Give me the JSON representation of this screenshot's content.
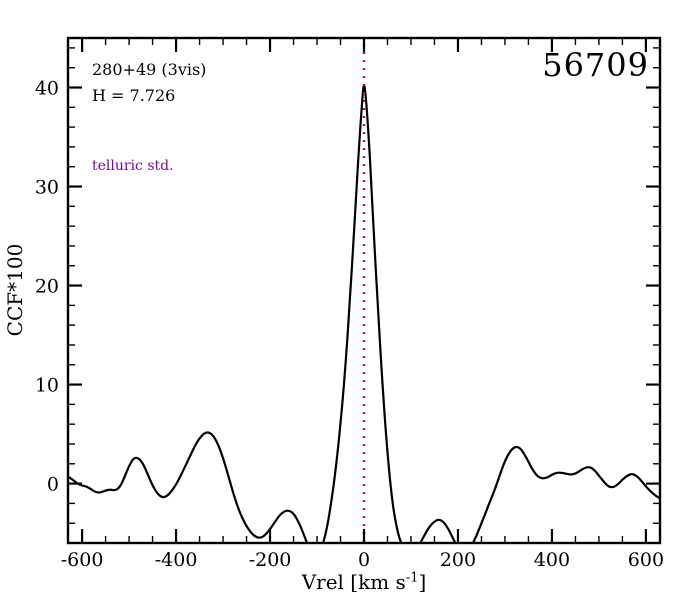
{
  "figure": {
    "background": "#ffffff",
    "axis_color": "#000000"
  },
  "annotations": {
    "target": "280+49 (3vis)",
    "hmag": "H = 7.726",
    "telluric": "telluric std.",
    "telluric_color": "#7d0c9e",
    "epoch": "56709"
  },
  "chart_data": {
    "type": "line",
    "title": "",
    "xlabel_parts": [
      "Vrel [km s",
      "-1",
      "]"
    ],
    "ylabel": "CCF*100",
    "xlim": [
      -630,
      630
    ],
    "ylim": [
      -6,
      45
    ],
    "xticks": [
      -600,
      -400,
      -200,
      0,
      200,
      400,
      600
    ],
    "yticks": [
      0,
      10,
      20,
      30,
      40
    ],
    "x_minor_step": 50,
    "y_minor_step": 2,
    "grid": false,
    "legend": "none",
    "reference_line": {
      "x": 0,
      "color": "#d01010",
      "style": "dotted"
    },
    "series": [
      {
        "name": "CCF",
        "color": "#000000",
        "points": [
          [
            -630,
            0.7
          ],
          [
            -620,
            0.4
          ],
          [
            -610,
            0.0
          ],
          [
            -600,
            -0.2
          ],
          [
            -590,
            -0.3
          ],
          [
            -580,
            -0.6
          ],
          [
            -570,
            -0.9
          ],
          [
            -560,
            -0.9
          ],
          [
            -550,
            -0.7
          ],
          [
            -540,
            -0.6
          ],
          [
            -530,
            -0.7
          ],
          [
            -520,
            -0.4
          ],
          [
            -510,
            0.6
          ],
          [
            -500,
            1.8
          ],
          [
            -490,
            2.6
          ],
          [
            -480,
            2.6
          ],
          [
            -470,
            2.0
          ],
          [
            -460,
            0.9
          ],
          [
            -450,
            -0.2
          ],
          [
            -440,
            -1.0
          ],
          [
            -430,
            -1.4
          ],
          [
            -420,
            -1.3
          ],
          [
            -410,
            -0.8
          ],
          [
            -400,
            -0.1
          ],
          [
            -390,
            0.8
          ],
          [
            -380,
            1.8
          ],
          [
            -370,
            2.8
          ],
          [
            -360,
            3.8
          ],
          [
            -350,
            4.6
          ],
          [
            -340,
            5.1
          ],
          [
            -330,
            5.2
          ],
          [
            -320,
            4.8
          ],
          [
            -310,
            3.9
          ],
          [
            -300,
            2.6
          ],
          [
            -290,
            1.0
          ],
          [
            -280,
            -0.7
          ],
          [
            -270,
            -2.2
          ],
          [
            -260,
            -3.4
          ],
          [
            -250,
            -4.3
          ],
          [
            -240,
            -5.0
          ],
          [
            -230,
            -5.4
          ],
          [
            -220,
            -5.5
          ],
          [
            -210,
            -5.2
          ],
          [
            -200,
            -4.6
          ],
          [
            -190,
            -3.9
          ],
          [
            -180,
            -3.2
          ],
          [
            -170,
            -2.8
          ],
          [
            -160,
            -2.7
          ],
          [
            -150,
            -3.0
          ],
          [
            -140,
            -3.8
          ],
          [
            -130,
            -4.9
          ],
          [
            -120,
            -6.2
          ],
          [
            -110,
            -7.0
          ],
          [
            -100,
            -7.2
          ],
          [
            -90,
            -6.5
          ],
          [
            -80,
            -4.8
          ],
          [
            -70,
            -2.0
          ],
          [
            -60,
            1.5
          ],
          [
            -50,
            6.0
          ],
          [
            -40,
            11.5
          ],
          [
            -30,
            18.5
          ],
          [
            -20,
            26.5
          ],
          [
            -15,
            30.5
          ],
          [
            -10,
            34.5
          ],
          [
            -5,
            38.0
          ],
          [
            -2,
            39.8
          ],
          [
            0,
            40.3
          ],
          [
            2,
            39.9
          ],
          [
            5,
            38.5
          ],
          [
            10,
            35.0
          ],
          [
            15,
            30.8
          ],
          [
            20,
            26.0
          ],
          [
            30,
            17.5
          ],
          [
            40,
            9.5
          ],
          [
            50,
            3.0
          ],
          [
            60,
            -1.8
          ],
          [
            70,
            -4.6
          ],
          [
            80,
            -6.2
          ],
          [
            90,
            -7.0
          ],
          [
            100,
            -7.2
          ],
          [
            110,
            -6.8
          ],
          [
            120,
            -6.0
          ],
          [
            130,
            -5.1
          ],
          [
            140,
            -4.3
          ],
          [
            150,
            -3.8
          ],
          [
            160,
            -3.6
          ],
          [
            170,
            -3.9
          ],
          [
            180,
            -4.6
          ],
          [
            190,
            -5.6
          ],
          [
            200,
            -6.5
          ],
          [
            210,
            -7.0
          ],
          [
            220,
            -6.9
          ],
          [
            230,
            -6.2
          ],
          [
            240,
            -5.2
          ],
          [
            250,
            -4.0
          ],
          [
            260,
            -2.8
          ],
          [
            270,
            -1.6
          ],
          [
            280,
            -0.4
          ],
          [
            290,
            1.0
          ],
          [
            300,
            2.3
          ],
          [
            310,
            3.2
          ],
          [
            320,
            3.7
          ],
          [
            330,
            3.7
          ],
          [
            340,
            3.1
          ],
          [
            350,
            2.2
          ],
          [
            360,
            1.3
          ],
          [
            370,
            0.7
          ],
          [
            380,
            0.5
          ],
          [
            390,
            0.6
          ],
          [
            400,
            0.9
          ],
          [
            410,
            1.1
          ],
          [
            420,
            1.1
          ],
          [
            430,
            1.0
          ],
          [
            440,
            0.9
          ],
          [
            450,
            1.0
          ],
          [
            460,
            1.3
          ],
          [
            470,
            1.6
          ],
          [
            480,
            1.7
          ],
          [
            490,
            1.4
          ],
          [
            500,
            0.8
          ],
          [
            510,
            0.2
          ],
          [
            520,
            -0.3
          ],
          [
            530,
            -0.4
          ],
          [
            540,
            -0.1
          ],
          [
            550,
            0.4
          ],
          [
            560,
            0.8
          ],
          [
            570,
            1.0
          ],
          [
            580,
            0.8
          ],
          [
            590,
            0.3
          ],
          [
            600,
            -0.3
          ],
          [
            610,
            -0.8
          ],
          [
            620,
            -1.2
          ],
          [
            630,
            -1.5
          ]
        ]
      }
    ]
  }
}
